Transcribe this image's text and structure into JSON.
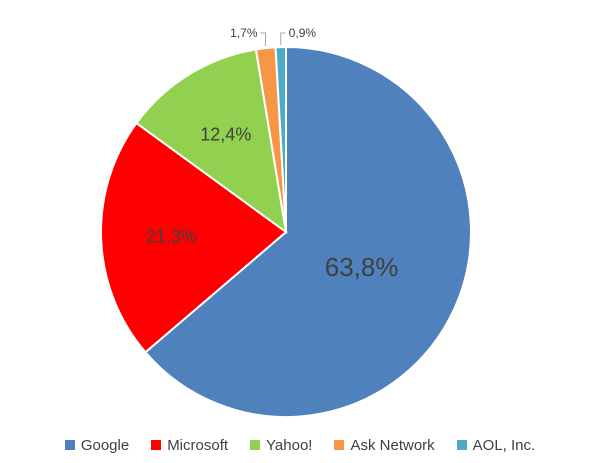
{
  "chart_data": {
    "type": "pie",
    "title": "",
    "slices": [
      {
        "name": "Google",
        "value": 63.8,
        "label": "63,8%",
        "color": "#4F81BD"
      },
      {
        "name": "Microsoft",
        "value": 21.3,
        "label": "21,3%",
        "color": "#FF0000"
      },
      {
        "name": "Yahoo!",
        "value": 12.4,
        "label": "12,4%",
        "color": "#92D050"
      },
      {
        "name": "Ask Network",
        "value": 1.7,
        "label": "1,7%",
        "color": "#F79646"
      },
      {
        "name": "AOL, Inc.",
        "value": 0.9,
        "label": "0,9%",
        "color": "#4BACC6"
      }
    ],
    "legend_position": "bottom",
    "start_angle": "top, clockwise"
  }
}
